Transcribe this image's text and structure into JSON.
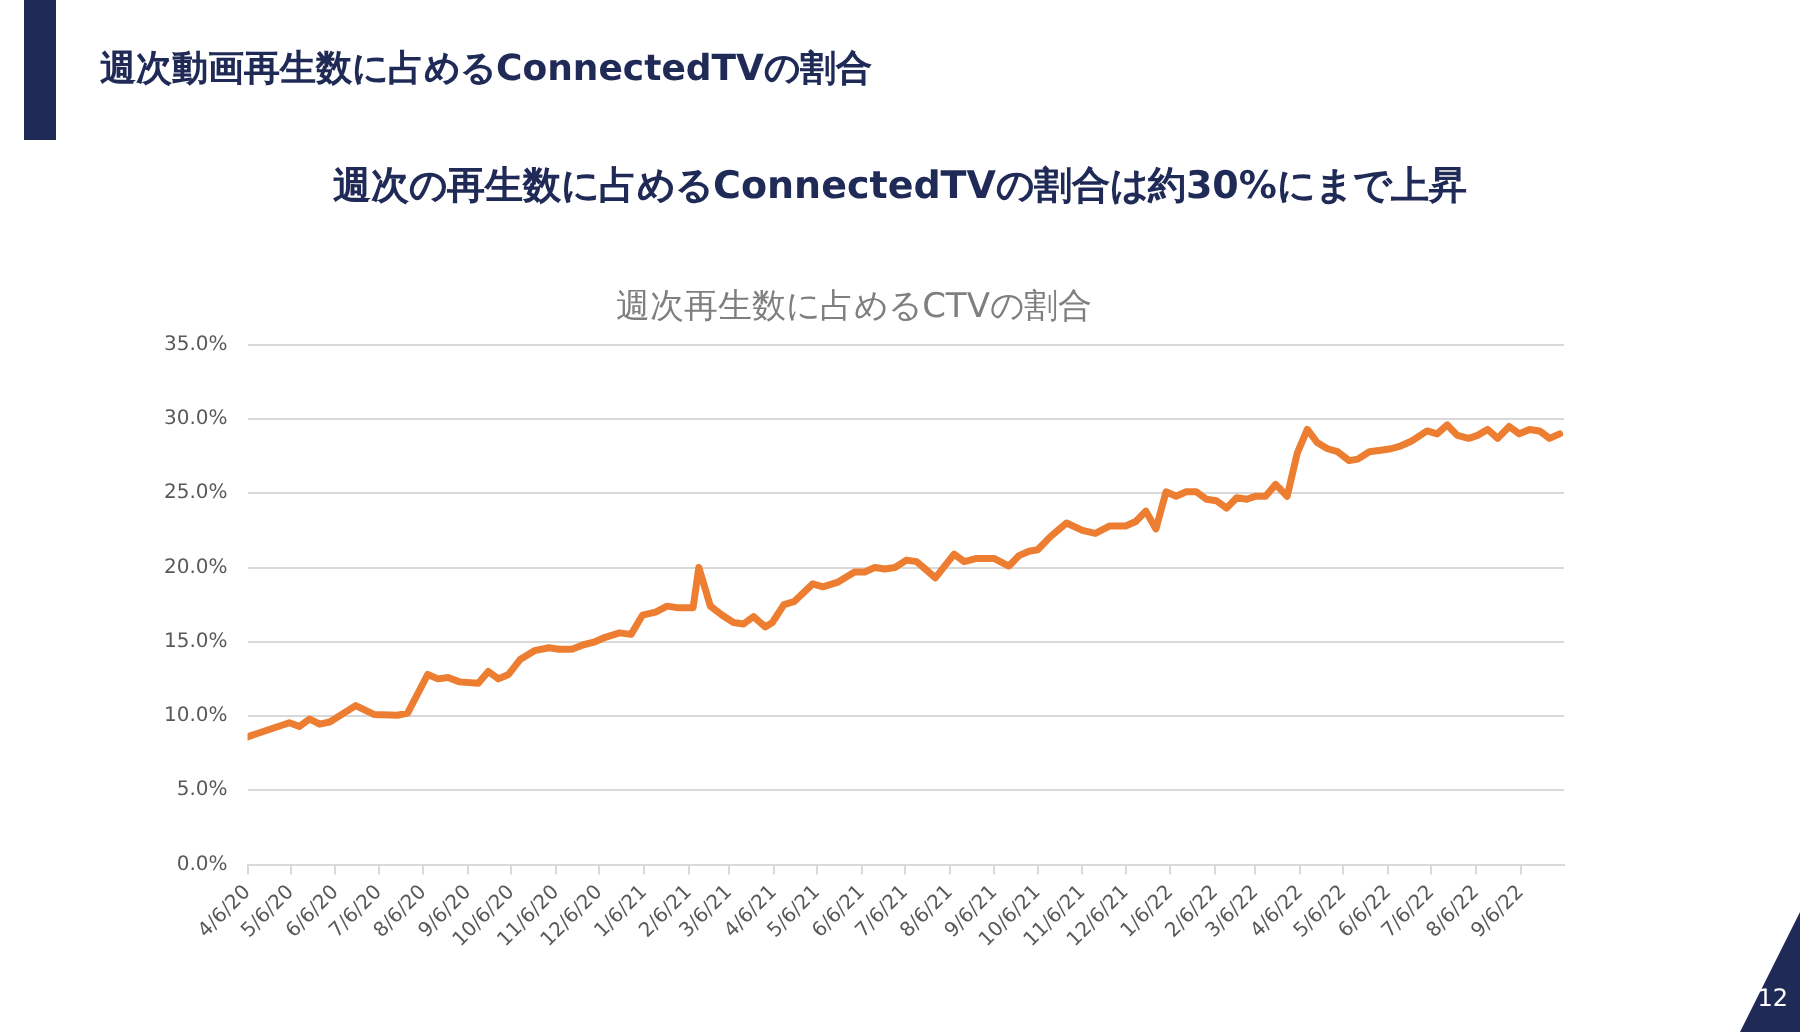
{
  "chart_data": {
    "type": "line",
    "title": "週次再生数に占めるCTVの割合",
    "annotations": [
      "週次動画再生数に占めるConnectedTVの割合",
      "週次の再生数に占めるConnectedTVの割合は約30%にまで上昇",
      "12"
    ],
    "x": [
      "2020-04-06",
      "2020-05-05",
      "2020-05-12",
      "2020-05-19",
      "2020-05-26",
      "2020-06-02",
      "2020-06-20",
      "2020-07-03",
      "2020-07-19",
      "2020-07-26",
      "2020-08-09",
      "2020-08-16",
      "2020-08-23",
      "2020-08-31",
      "2020-09-13",
      "2020-09-20",
      "2020-09-27",
      "2020-10-04",
      "2020-10-12",
      "2020-10-22",
      "2020-11-01",
      "2020-11-08",
      "2020-11-17",
      "2020-11-25",
      "2020-12-03",
      "2020-12-10",
      "2020-12-20",
      "2020-12-28",
      "2021-01-05",
      "2021-01-14",
      "2021-01-22",
      "2021-01-29",
      "2021-02-09",
      "2021-02-13",
      "2021-02-21",
      "2021-03-01",
      "2021-03-09",
      "2021-03-16",
      "2021-03-23",
      "2021-03-31",
      "2021-04-05",
      "2021-04-13",
      "2021-04-20",
      "2021-05-03",
      "2021-05-10",
      "2021-05-20",
      "2021-06-01",
      "2021-06-08",
      "2021-06-15",
      "2021-06-22",
      "2021-06-29",
      "2021-07-07",
      "2021-07-14",
      "2021-07-20",
      "2021-07-27",
      "2021-08-09",
      "2021-08-16",
      "2021-08-24",
      "2021-09-06",
      "2021-09-16",
      "2021-09-23",
      "2021-09-30",
      "2021-10-06",
      "2021-10-15",
      "2021-10-26",
      "2021-11-06",
      "2021-11-15",
      "2021-11-25",
      "2021-12-06",
      "2021-12-13",
      "2021-12-20",
      "2021-12-27",
      "2022-01-03",
      "2022-01-10",
      "2022-01-17",
      "2022-01-24",
      "2022-01-31",
      "2022-02-07",
      "2022-02-14",
      "2022-02-21",
      "2022-02-28",
      "2022-03-06",
      "2022-03-13",
      "2022-03-20",
      "2022-03-28",
      "2022-04-04",
      "2022-04-11",
      "2022-04-18",
      "2022-04-25",
      "2022-05-02",
      "2022-05-10",
      "2022-05-16",
      "2022-05-24",
      "2022-06-01",
      "2022-06-08",
      "2022-06-15",
      "2022-06-22",
      "2022-07-03",
      "2022-07-10",
      "2022-07-17",
      "2022-07-24",
      "2022-08-01",
      "2022-08-07",
      "2022-08-14",
      "2022-08-21",
      "2022-08-29",
      "2022-09-05",
      "2022-09-12",
      "2022-09-19",
      "2022-09-26",
      "2022-10-03"
    ],
    "series": [
      {
        "color": "#ed7d31",
        "values": [
          8.6,
          9.55,
          9.3,
          9.8,
          9.45,
          9.6,
          10.7,
          10.1,
          10.05,
          10.2,
          12.8,
          12.5,
          12.6,
          12.3,
          12.2,
          13.0,
          12.5,
          12.8,
          13.8,
          14.4,
          14.6,
          14.5,
          14.5,
          14.8,
          15.0,
          15.3,
          15.6,
          15.5,
          16.8,
          17.0,
          17.4,
          17.3,
          17.3,
          20.0,
          17.4,
          16.8,
          16.3,
          16.2,
          16.7,
          16.0,
          16.3,
          17.5,
          17.7,
          18.9,
          18.7,
          19.0,
          19.7,
          19.7,
          20.0,
          19.9,
          20.0,
          20.5,
          20.4,
          19.9,
          19.3,
          20.9,
          20.4,
          20.6,
          20.6,
          20.1,
          20.8,
          21.1,
          21.2,
          22.1,
          23.0,
          22.5,
          22.3,
          22.8,
          22.8,
          23.1,
          23.8,
          22.6,
          25.1,
          24.8,
          25.1,
          25.1,
          24.6,
          24.5,
          24.0,
          24.7,
          24.6,
          24.8,
          24.8,
          25.6,
          24.8,
          27.7,
          29.3,
          28.4,
          28.0,
          27.8,
          27.2,
          27.3,
          27.8,
          27.9,
          28.0,
          28.2,
          28.5,
          29.2,
          29.0,
          29.6,
          28.9,
          28.7,
          28.9,
          29.3,
          28.7,
          29.5,
          29.0,
          29.3,
          29.2,
          28.7,
          29.0
        ]
      }
    ],
    "xlim": [
      "2020-04-06",
      "2022-10-06"
    ],
    "xticks": [
      {
        "value": "2020-04-06",
        "label": "4/6/20"
      },
      {
        "value": "2020-05-06",
        "label": "5/6/20"
      },
      {
        "value": "2020-06-06",
        "label": "6/6/20"
      },
      {
        "value": "2020-07-06",
        "label": "7/6/20"
      },
      {
        "value": "2020-08-06",
        "label": "8/6/20"
      },
      {
        "value": "2020-09-06",
        "label": "9/6/20"
      },
      {
        "value": "2020-10-06",
        "label": "10/6/20"
      },
      {
        "value": "2020-11-06",
        "label": "11/6/20"
      },
      {
        "value": "2020-12-06",
        "label": "12/6/20"
      },
      {
        "value": "2021-01-06",
        "label": "1/6/21"
      },
      {
        "value": "2021-02-06",
        "label": "2/6/21"
      },
      {
        "value": "2021-03-06",
        "label": "3/6/21"
      },
      {
        "value": "2021-04-06",
        "label": "4/6/21"
      },
      {
        "value": "2021-05-06",
        "label": "5/6/21"
      },
      {
        "value": "2021-06-06",
        "label": "6/6/21"
      },
      {
        "value": "2021-07-06",
        "label": "7/6/21"
      },
      {
        "value": "2021-08-06",
        "label": "8/6/21"
      },
      {
        "value": "2021-09-06",
        "label": "9/6/21"
      },
      {
        "value": "2021-10-06",
        "label": "10/6/21"
      },
      {
        "value": "2021-11-06",
        "label": "11/6/21"
      },
      {
        "value": "2021-12-06",
        "label": "12/6/21"
      },
      {
        "value": "2022-01-06",
        "label": "1/6/22"
      },
      {
        "value": "2022-02-06",
        "label": "2/6/22"
      },
      {
        "value": "2022-03-06",
        "label": "3/6/22"
      },
      {
        "value": "2022-04-06",
        "label": "4/6/22"
      },
      {
        "value": "2022-05-06",
        "label": "5/6/22"
      },
      {
        "value": "2022-06-06",
        "label": "6/6/22"
      },
      {
        "value": "2022-07-06",
        "label": "7/6/22"
      },
      {
        "value": "2022-08-06",
        "label": "8/6/22"
      },
      {
        "value": "2022-09-06",
        "label": "9/6/22"
      }
    ],
    "ylim": [
      0,
      35
    ],
    "yticks": [
      {
        "value": 0,
        "label": "0.0%"
      },
      {
        "value": 5,
        "label": "5.0%"
      },
      {
        "value": 10,
        "label": "10.0%"
      },
      {
        "value": 15,
        "label": "15.0%"
      },
      {
        "value": 20,
        "label": "20.0%"
      },
      {
        "value": 25,
        "label": "25.0%"
      },
      {
        "value": 30,
        "label": "30.0%"
      },
      {
        "value": 35,
        "label": "35.0%"
      }
    ],
    "grid": "y",
    "legend": false,
    "marker": "none",
    "line_style": "solid"
  }
}
